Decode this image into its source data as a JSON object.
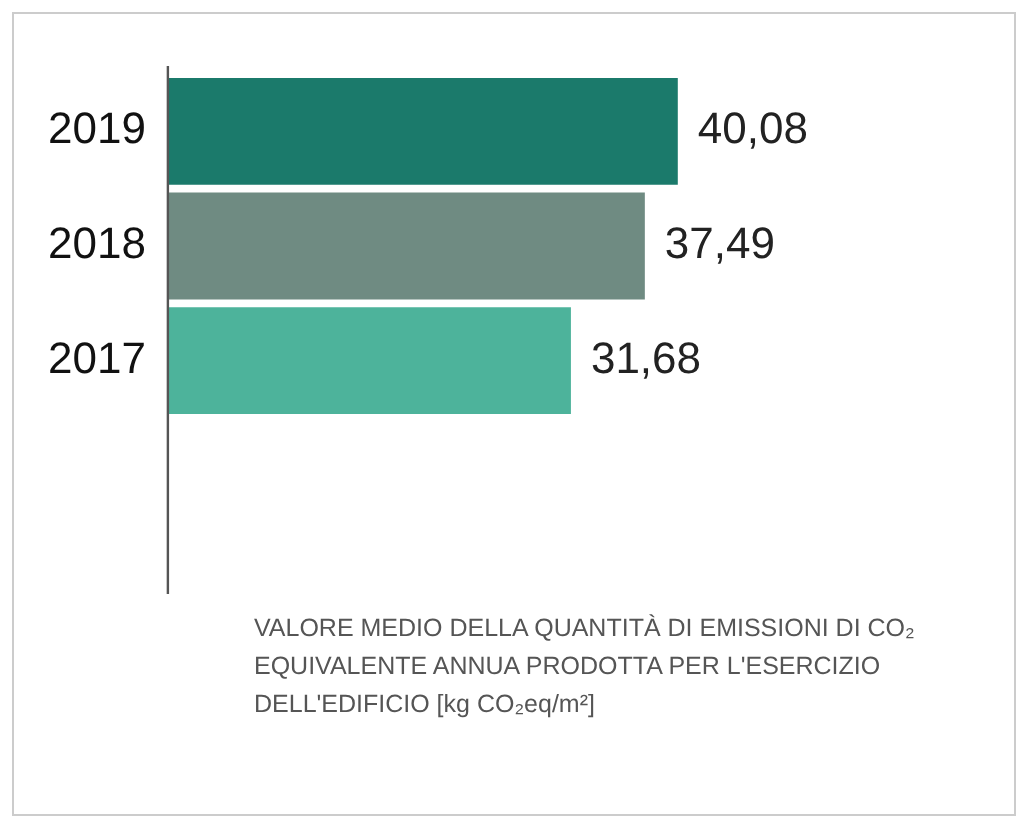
{
  "chart_data": {
    "type": "bar",
    "orientation": "horizontal",
    "categories": [
      "2019",
      "2018",
      "2017"
    ],
    "values": [
      40.08,
      37.49,
      31.68
    ],
    "colors": [
      "#1b7a6b",
      "#6f8b82",
      "#4db39b"
    ],
    "value_labels": [
      "40,08",
      "37,49",
      "31,68"
    ],
    "annotations": [
      "VALORE MEDIO DELLA QUANTITÀ DI EMISSIONI DI CO₂ EQUIVALENTE ANNUA PRODOTTA PER L'ESERCIZIO DELL'EDIFICIO [kg CO₂eq/m²]"
    ],
    "legend": false,
    "tick_labels": "y"
  }
}
